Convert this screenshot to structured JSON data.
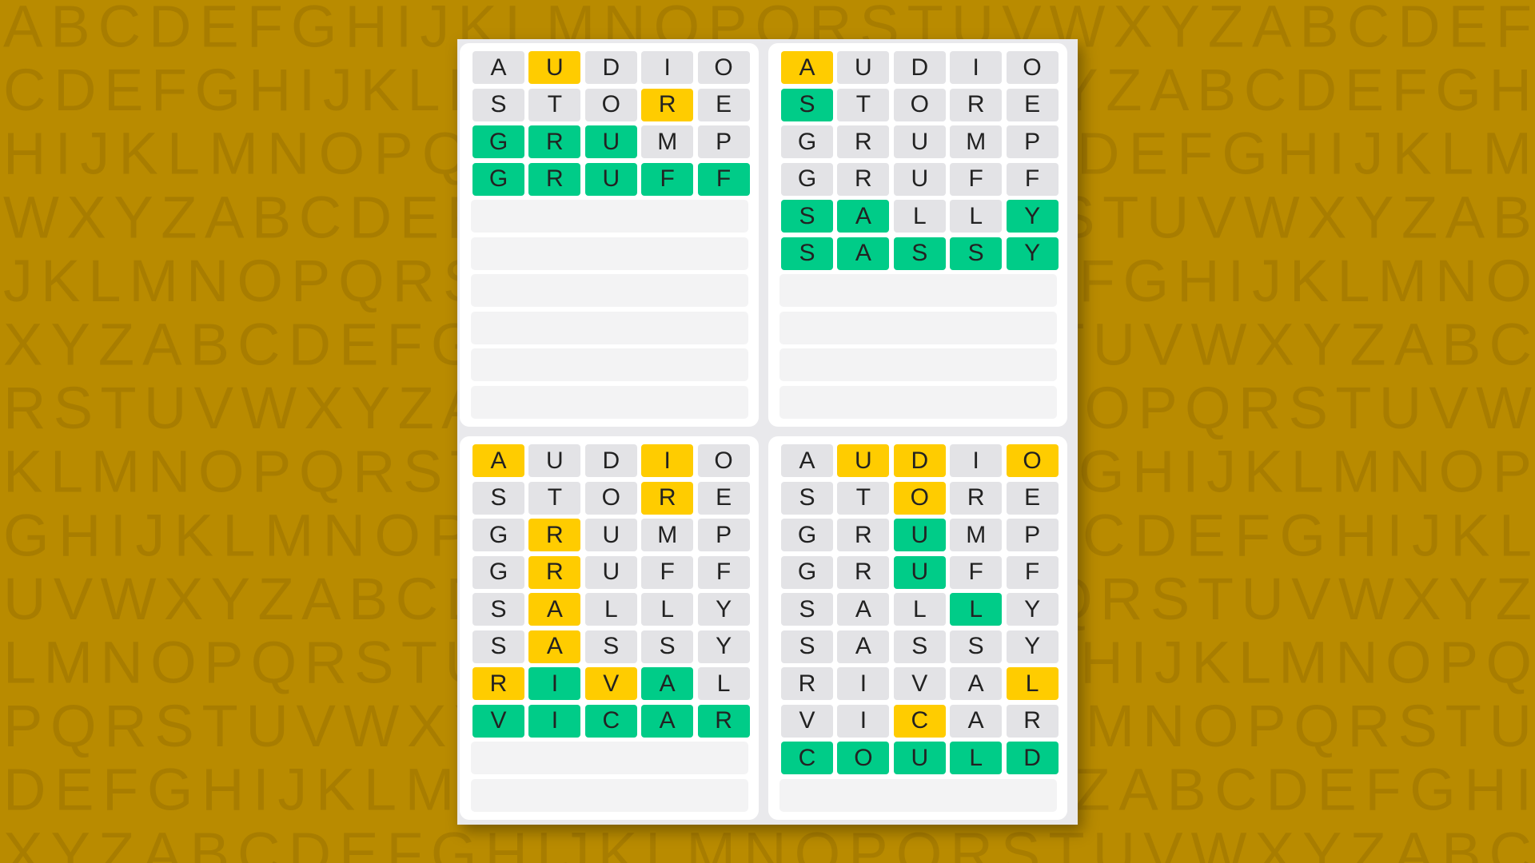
{
  "background": {
    "rows": [
      "ABCDEFGHIJKLMNOPQRSTUVWXYZABCDEF",
      "CDEFGHIJKLMNOPQRSTUVWXYZABCDEFGH",
      "HIJKLMNOPQRSTUVWXYZABCDEFGHIJKLM",
      "WXYZABCDEFGHIJKLMNOPQRSTUVWXYZAB",
      "JKLMNOPQRSTUVWXYZABCDEFGHIJKLMNO",
      "XYZABCDEFGHIJKLMNOPQRSTUVWXYZABC",
      "RSTUVWXYZABCDEFGHIJKLMNOPQRSTUVW",
      "KLMNOPQRSTUVWXYZABCDEFGHIJKLMNOP",
      "GHIJKLMNOPQRSTUVWXYZABCDEFGHIJKL",
      "UVWXYZABCDEFGHIJKLMNOPQRSTUVWXYZ",
      "LMNOPQRSTUVWXYZABCDEFGHIJKLMNOPQ",
      "PQRSTUVWXYZABCDEFGHIJKLMNOPQRSTU",
      "DEFGHIJKLMNOPQRSTUVWXYZABCDEFGHI",
      "XYZABCDEFGHIJKLMNOPQRSTUVWXYZABC"
    ]
  },
  "colors": {
    "gray": "#e3e3e6",
    "yellow": "#ffcc00",
    "green": "#00cc88"
  },
  "boards": [
    {
      "guesses": [
        {
          "letters": [
            "A",
            "U",
            "D",
            "I",
            "O"
          ],
          "states": [
            "gray",
            "yellow",
            "gray",
            "gray",
            "gray"
          ]
        },
        {
          "letters": [
            "S",
            "T",
            "O",
            "R",
            "E"
          ],
          "states": [
            "gray",
            "gray",
            "gray",
            "yellow",
            "gray"
          ]
        },
        {
          "letters": [
            "G",
            "R",
            "U",
            "M",
            "P"
          ],
          "states": [
            "green",
            "green",
            "green",
            "gray",
            "gray"
          ]
        },
        {
          "letters": [
            "G",
            "R",
            "U",
            "F",
            "F"
          ],
          "states": [
            "green",
            "green",
            "green",
            "green",
            "green"
          ]
        }
      ]
    },
    {
      "guesses": [
        {
          "letters": [
            "A",
            "U",
            "D",
            "I",
            "O"
          ],
          "states": [
            "yellow",
            "gray",
            "gray",
            "gray",
            "gray"
          ]
        },
        {
          "letters": [
            "S",
            "T",
            "O",
            "R",
            "E"
          ],
          "states": [
            "green",
            "gray",
            "gray",
            "gray",
            "gray"
          ]
        },
        {
          "letters": [
            "G",
            "R",
            "U",
            "M",
            "P"
          ],
          "states": [
            "gray",
            "gray",
            "gray",
            "gray",
            "gray"
          ]
        },
        {
          "letters": [
            "G",
            "R",
            "U",
            "F",
            "F"
          ],
          "states": [
            "gray",
            "gray",
            "gray",
            "gray",
            "gray"
          ]
        },
        {
          "letters": [
            "S",
            "A",
            "L",
            "L",
            "Y"
          ],
          "states": [
            "green",
            "green",
            "gray",
            "gray",
            "green"
          ]
        },
        {
          "letters": [
            "S",
            "A",
            "S",
            "S",
            "Y"
          ],
          "states": [
            "green",
            "green",
            "green",
            "green",
            "green"
          ]
        }
      ]
    },
    {
      "guesses": [
        {
          "letters": [
            "A",
            "U",
            "D",
            "I",
            "O"
          ],
          "states": [
            "yellow",
            "gray",
            "gray",
            "yellow",
            "gray"
          ]
        },
        {
          "letters": [
            "S",
            "T",
            "O",
            "R",
            "E"
          ],
          "states": [
            "gray",
            "gray",
            "gray",
            "yellow",
            "gray"
          ]
        },
        {
          "letters": [
            "G",
            "R",
            "U",
            "M",
            "P"
          ],
          "states": [
            "gray",
            "yellow",
            "gray",
            "gray",
            "gray"
          ]
        },
        {
          "letters": [
            "G",
            "R",
            "U",
            "F",
            "F"
          ],
          "states": [
            "gray",
            "yellow",
            "gray",
            "gray",
            "gray"
          ]
        },
        {
          "letters": [
            "S",
            "A",
            "L",
            "L",
            "Y"
          ],
          "states": [
            "gray",
            "yellow",
            "gray",
            "gray",
            "gray"
          ]
        },
        {
          "letters": [
            "S",
            "A",
            "S",
            "S",
            "Y"
          ],
          "states": [
            "gray",
            "yellow",
            "gray",
            "gray",
            "gray"
          ]
        },
        {
          "letters": [
            "R",
            "I",
            "V",
            "A",
            "L"
          ],
          "states": [
            "yellow",
            "green",
            "yellow",
            "green",
            "gray"
          ]
        },
        {
          "letters": [
            "V",
            "I",
            "C",
            "A",
            "R"
          ],
          "states": [
            "green",
            "green",
            "green",
            "green",
            "green"
          ]
        }
      ]
    },
    {
      "guesses": [
        {
          "letters": [
            "A",
            "U",
            "D",
            "I",
            "O"
          ],
          "states": [
            "gray",
            "yellow",
            "yellow",
            "gray",
            "yellow"
          ]
        },
        {
          "letters": [
            "S",
            "T",
            "O",
            "R",
            "E"
          ],
          "states": [
            "gray",
            "gray",
            "yellow",
            "gray",
            "gray"
          ]
        },
        {
          "letters": [
            "G",
            "R",
            "U",
            "M",
            "P"
          ],
          "states": [
            "gray",
            "gray",
            "green",
            "gray",
            "gray"
          ]
        },
        {
          "letters": [
            "G",
            "R",
            "U",
            "F",
            "F"
          ],
          "states": [
            "gray",
            "gray",
            "green",
            "gray",
            "gray"
          ]
        },
        {
          "letters": [
            "S",
            "A",
            "L",
            "L",
            "Y"
          ],
          "states": [
            "gray",
            "gray",
            "gray",
            "green",
            "gray"
          ]
        },
        {
          "letters": [
            "S",
            "A",
            "S",
            "S",
            "Y"
          ],
          "states": [
            "gray",
            "gray",
            "gray",
            "gray",
            "gray"
          ]
        },
        {
          "letters": [
            "R",
            "I",
            "V",
            "A",
            "L"
          ],
          "states": [
            "gray",
            "gray",
            "gray",
            "gray",
            "yellow"
          ]
        },
        {
          "letters": [
            "V",
            "I",
            "C",
            "A",
            "R"
          ],
          "states": [
            "gray",
            "gray",
            "yellow",
            "gray",
            "gray"
          ]
        },
        {
          "letters": [
            "C",
            "O",
            "U",
            "L",
            "D"
          ],
          "states": [
            "green",
            "green",
            "green",
            "green",
            "green"
          ]
        }
      ]
    }
  ]
}
